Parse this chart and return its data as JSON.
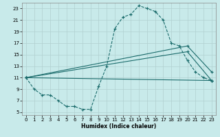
{
  "xlabel": "Humidex (Indice chaleur)",
  "xlim": [
    -0.5,
    23.5
  ],
  "ylim": [
    4.5,
    24.0
  ],
  "xticks": [
    0,
    1,
    2,
    3,
    4,
    5,
    6,
    7,
    8,
    9,
    10,
    11,
    12,
    13,
    14,
    15,
    16,
    17,
    18,
    19,
    20,
    21,
    22,
    23
  ],
  "yticks": [
    5,
    7,
    9,
    11,
    13,
    15,
    17,
    19,
    21,
    23
  ],
  "bg_color": "#c8eaea",
  "grid_color": "#b0d0d0",
  "line_color": "#1a6b6b",
  "line1_x": [
    0,
    1,
    2,
    3,
    4,
    5,
    6,
    7,
    8,
    9,
    10,
    11,
    12,
    13,
    14,
    15,
    16,
    17,
    18,
    19,
    20,
    21,
    22,
    23
  ],
  "line1_y": [
    11,
    9,
    8,
    8,
    7,
    6,
    6,
    5.5,
    5.5,
    9.5,
    13,
    19.5,
    21.5,
    22,
    23.5,
    23,
    22.5,
    21,
    17,
    16.5,
    14,
    12,
    11,
    10.5
  ],
  "line2_x": [
    0,
    20,
    23
  ],
  "line2_y": [
    11,
    16.5,
    12
  ],
  "line3_x": [
    0,
    20,
    23
  ],
  "line3_y": [
    11,
    15.5,
    10.5
  ],
  "line4_x": [
    0,
    23
  ],
  "line4_y": [
    11,
    10.5
  ]
}
